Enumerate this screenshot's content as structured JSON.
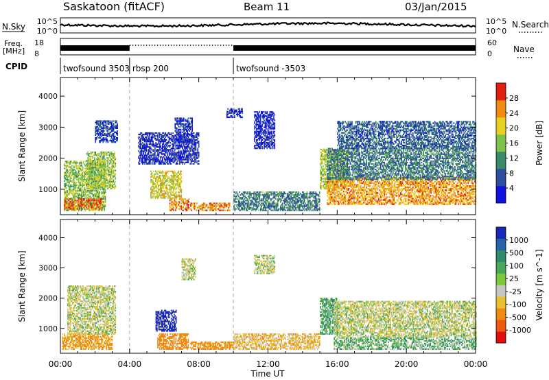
{
  "header": {
    "station": "Saskatoon (fitACF)",
    "beam": "Beam 11",
    "date": "03/Jan/2015"
  },
  "noise_panel": {
    "left_label": "N.Sky",
    "right_label": "N.Search",
    "left_ticks": [
      "10^5",
      "10^0"
    ],
    "right_ticks": [
      "10^5",
      "10^0"
    ]
  },
  "freq_panel": {
    "left_label_line1": "Freq.",
    "left_label_line2": "[MHz]",
    "right_label": "Nave",
    "left_ticks": [
      "18",
      "8"
    ],
    "right_ticks": [
      "60",
      "0"
    ]
  },
  "cpid": {
    "label": "CPID",
    "segments": [
      {
        "name": "twofsound 3503",
        "start_hour": 0
      },
      {
        "name": "rbsp 200",
        "start_hour": 4
      },
      {
        "name": "twofsound -3503",
        "start_hour": 10
      }
    ]
  },
  "x_axis": {
    "label": "Time UT",
    "ticks": [
      "00:00",
      "04:00",
      "08:00",
      "12:00",
      "16:00",
      "20:00",
      "00:00"
    ],
    "range_hours": [
      0,
      24
    ]
  },
  "chart_data": [
    {
      "type": "heatmap",
      "name": "power",
      "ylabel": "Slant Range [km]",
      "yticks": [
        "1000",
        "2000",
        "3000",
        "4000"
      ],
      "ylim": [
        180,
        4600
      ],
      "colorbar_label": "Power [dB]",
      "colorbar_ticks": [
        "4",
        "8",
        "12",
        "16",
        "20",
        "24",
        "28"
      ],
      "colorbar_range": [
        0,
        32
      ],
      "colors": [
        "#1010e0",
        "#2e4fa0",
        "#3a8a6a",
        "#7cc24a",
        "#e8d020",
        "#f08a10",
        "#e02010"
      ],
      "regions": [
        {
          "t": [
            0.2,
            2.6
          ],
          "r": [
            300,
            1900
          ],
          "p": 16
        },
        {
          "t": [
            0.2,
            2.4
          ],
          "r": [
            350,
            700
          ],
          "p": 27
        },
        {
          "t": [
            1.5,
            3.2
          ],
          "r": [
            1000,
            2200
          ],
          "p": 17
        },
        {
          "t": [
            2.0,
            3.3
          ],
          "r": [
            2500,
            3200
          ],
          "p": 6
        },
        {
          "t": [
            5.2,
            7.0
          ],
          "r": [
            700,
            1600
          ],
          "p": 20
        },
        {
          "t": [
            6.3,
            7.4
          ],
          "r": [
            300,
            700
          ],
          "p": 26
        },
        {
          "t": [
            7.5,
            9.8
          ],
          "r": [
            300,
            550
          ],
          "p": 25
        },
        {
          "t": [
            4.5,
            8.0
          ],
          "r": [
            1800,
            2800
          ],
          "p": 4
        },
        {
          "t": [
            6.6,
            7.6
          ],
          "r": [
            2500,
            3300
          ],
          "p": 5
        },
        {
          "t": [
            9.6,
            10.5
          ],
          "r": [
            3300,
            3600
          ],
          "p": 4
        },
        {
          "t": [
            11.2,
            12.4
          ],
          "r": [
            2300,
            3500
          ],
          "p": 4
        },
        {
          "t": [
            10.0,
            15.0
          ],
          "r": [
            300,
            900
          ],
          "p": 10
        },
        {
          "t": [
            15.0,
            16.6
          ],
          "r": [
            1000,
            2300
          ],
          "p": 18
        },
        {
          "t": [
            15.4,
            24.0
          ],
          "r": [
            500,
            1400
          ],
          "p": 24
        },
        {
          "t": [
            15.4,
            24.0
          ],
          "r": [
            1300,
            2300
          ],
          "p": 10
        },
        {
          "t": [
            16.0,
            24.0
          ],
          "r": [
            2300,
            3200
          ],
          "p": 8
        }
      ]
    },
    {
      "type": "heatmap",
      "name": "velocity",
      "ylabel": "Slant Range [km]",
      "yticks": [
        "1000",
        "2000",
        "3000",
        "4000"
      ],
      "ylim": [
        180,
        4600
      ],
      "colorbar_label": "Velocity [m s^-1]",
      "colorbar_ticks": [
        "1000",
        "500",
        "100",
        "25",
        "-25",
        "-100",
        "-500",
        "-1000"
      ],
      "colors": [
        "#1a28b8",
        "#2a62a8",
        "#2e8a6a",
        "#4aa85a",
        "#7cc83a",
        "#c8c8c0",
        "#e8c030",
        "#f08a10",
        "#f05a10",
        "#e01010"
      ],
      "regions": [
        {
          "t": [
            0.1,
            3.0
          ],
          "r": [
            300,
            800
          ],
          "v": -120
        },
        {
          "t": [
            0.4,
            3.2
          ],
          "r": [
            800,
            2400
          ],
          "v": 0
        },
        {
          "t": [
            5.5,
            6.7
          ],
          "r": [
            900,
            1600
          ],
          "v": 700
        },
        {
          "t": [
            5.6,
            7.4
          ],
          "r": [
            300,
            800
          ],
          "v": -200
        },
        {
          "t": [
            7.5,
            10.0
          ],
          "r": [
            300,
            550
          ],
          "v": -150
        },
        {
          "t": [
            7.0,
            7.8
          ],
          "r": [
            2600,
            3300
          ],
          "v": 0
        },
        {
          "t": [
            10.0,
            15.0
          ],
          "r": [
            300,
            800
          ],
          "v": -60
        },
        {
          "t": [
            11.2,
            12.4
          ],
          "r": [
            2800,
            3400
          ],
          "v": 0
        },
        {
          "t": [
            15.0,
            16.0
          ],
          "r": [
            800,
            2000
          ],
          "v": 80
        },
        {
          "t": [
            15.8,
            24.0
          ],
          "r": [
            700,
            1900
          ],
          "v": 0
        },
        {
          "t": [
            15.8,
            24.0
          ],
          "r": [
            300,
            700
          ],
          "v": 60
        }
      ]
    }
  ]
}
